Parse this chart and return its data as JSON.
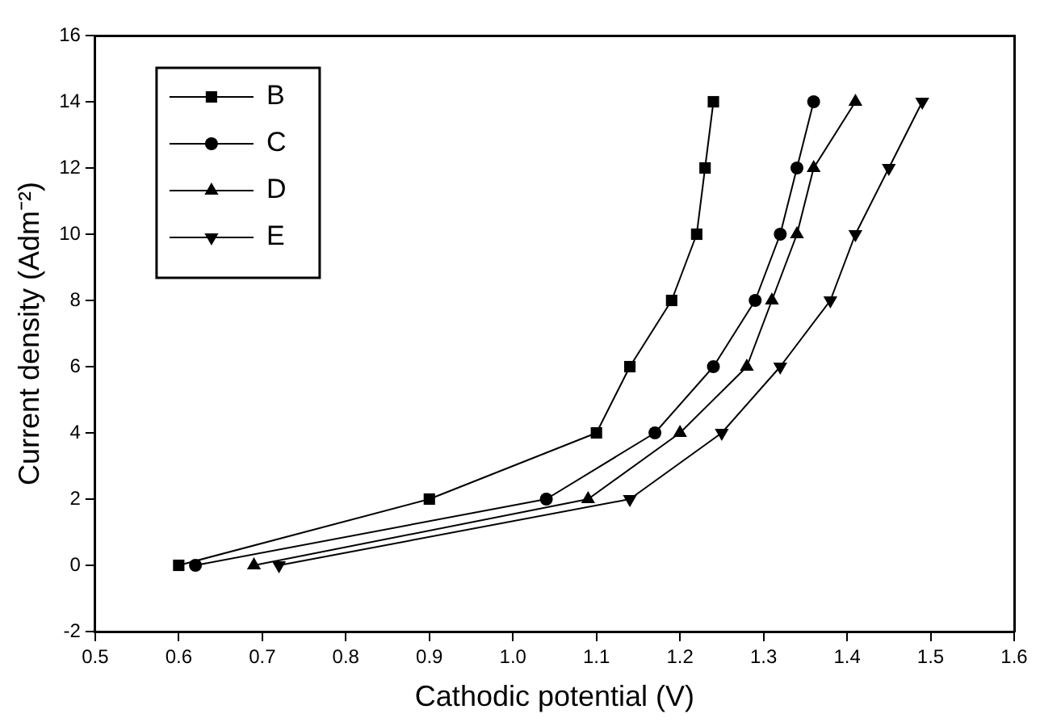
{
  "chart_data": {
    "type": "line",
    "xlabel": "Cathodic potential (V)",
    "ylabel": "Current density (Adm⁻²)",
    "xlim": [
      0.5,
      1.6
    ],
    "ylim": [
      -2,
      16
    ],
    "xticks": [
      {
        "value": 0.5,
        "label": "0.5"
      },
      {
        "value": 0.6,
        "label": "0.6"
      },
      {
        "value": 0.7,
        "label": "0.7"
      },
      {
        "value": 0.8,
        "label": "0.8"
      },
      {
        "value": 0.9,
        "label": "0.9"
      },
      {
        "value": 1.0,
        "label": "1.0"
      },
      {
        "value": 1.1,
        "label": "1.1"
      },
      {
        "value": 1.2,
        "label": "1.2"
      },
      {
        "value": 1.3,
        "label": "1.3"
      },
      {
        "value": 1.4,
        "label": "1.4"
      },
      {
        "value": 1.5,
        "label": "1.5"
      },
      {
        "value": 1.6,
        "label": "1.6"
      }
    ],
    "yticks": [
      -2,
      0,
      2,
      4,
      6,
      8,
      10,
      12,
      14,
      16
    ],
    "grid": false,
    "legend": "top left",
    "line_style": "solid",
    "series": [
      {
        "name": "B",
        "color": "#000000",
        "marker": "square",
        "x": [
          0.6,
          0.9,
          1.1,
          1.14,
          1.19,
          1.22,
          1.23,
          1.24
        ],
        "values": [
          0,
          2,
          4,
          6,
          8,
          10,
          12,
          14
        ]
      },
      {
        "name": "C",
        "color": "#000000",
        "marker": "circle",
        "x": [
          0.62,
          1.04,
          1.17,
          1.24,
          1.29,
          1.32,
          1.34,
          1.36
        ],
        "values": [
          0,
          2,
          4,
          6,
          8,
          10,
          12,
          14
        ]
      },
      {
        "name": "D",
        "color": "#000000",
        "marker": "triangle",
        "x": [
          0.69,
          1.09,
          1.2,
          1.28,
          1.31,
          1.34,
          1.36,
          1.41
        ],
        "values": [
          0,
          2,
          4,
          6,
          8,
          10,
          12,
          14
        ]
      },
      {
        "name": "E",
        "color": "#000000",
        "marker": "triangle-down",
        "x": [
          0.72,
          1.14,
          1.25,
          1.32,
          1.38,
          1.41,
          1.45,
          1.49
        ],
        "values": [
          0,
          2,
          4,
          6,
          8,
          10,
          12,
          14
        ]
      }
    ]
  }
}
